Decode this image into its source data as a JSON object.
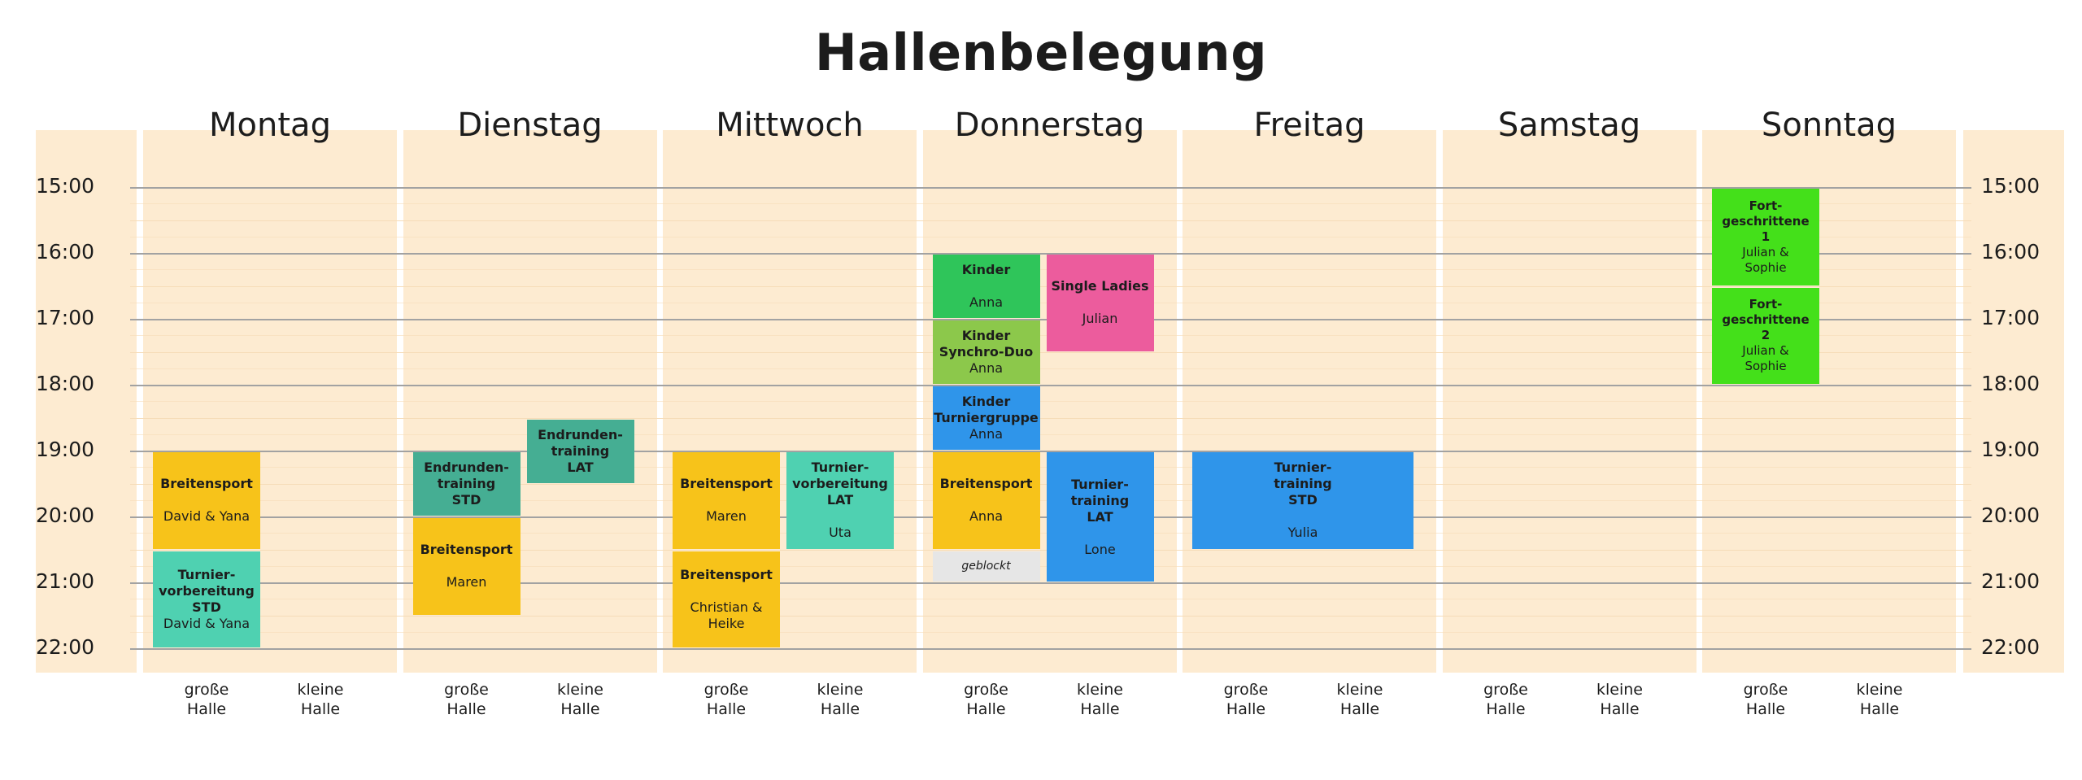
{
  "title": "Hallenbelegung",
  "days": [
    "Montag",
    "Dienstag",
    "Mittwoch",
    "Donnerstag",
    "Freitag",
    "Samstag",
    "Sonntag"
  ],
  "times": [
    "15:00",
    "16:00",
    "17:00",
    "18:00",
    "19:00",
    "20:00",
    "21:00",
    "22:00"
  ],
  "halls": {
    "gross": "große\nHalle",
    "klein": "kleine\nHalle"
  },
  "colors": {
    "background": "#fdebd1",
    "title": "#1c1c1c",
    "grid": "#a2a2a2"
  },
  "events": [
    {
      "day": 0,
      "hall": "gross",
      "start": 19.0,
      "end": 20.5,
      "color": "#f7c31a",
      "title": "Breitensport",
      "sub": "David & Yana",
      "gap": true
    },
    {
      "day": 0,
      "hall": "gross",
      "start": 20.5,
      "end": 22.0,
      "color": "#4fd1b1",
      "title": "Turnier-\nvorbereitung\nSTD",
      "sub": "David & Yana",
      "gap": false
    },
    {
      "day": 1,
      "hall": "gross",
      "start": 19.0,
      "end": 20.0,
      "color": "#45ae93",
      "title": "Endrunden-\ntraining\nSTD",
      "sub": "",
      "gap": false
    },
    {
      "day": 1,
      "hall": "gross",
      "start": 20.0,
      "end": 21.5,
      "color": "#f7c31a",
      "title": "Breitensport",
      "sub": "Maren",
      "gap": true
    },
    {
      "day": 1,
      "hall": "klein",
      "start": 18.5,
      "end": 19.5,
      "color": "#45ae93",
      "title": "Endrunden-\ntraining\nLAT",
      "sub": "",
      "gap": false
    },
    {
      "day": 2,
      "hall": "gross",
      "start": 19.0,
      "end": 20.5,
      "color": "#f7c31a",
      "title": "Breitensport",
      "sub": "Maren",
      "gap": true
    },
    {
      "day": 2,
      "hall": "gross",
      "start": 20.5,
      "end": 22.0,
      "color": "#f7c31a",
      "title": "Breitensport",
      "sub": "Christian &\nHeike",
      "gap": true
    },
    {
      "day": 2,
      "hall": "klein",
      "start": 19.0,
      "end": 20.5,
      "color": "#4fd1b1",
      "title": "Turnier-\nvorbereitung\nLAT",
      "sub": "Uta",
      "gap": true
    },
    {
      "day": 3,
      "hall": "gross",
      "start": 16.0,
      "end": 17.0,
      "color": "#2fc55a",
      "title": "Kinder",
      "sub": "Anna",
      "gap": true
    },
    {
      "day": 3,
      "hall": "gross",
      "start": 17.0,
      "end": 18.0,
      "color": "#8cc84b",
      "title": "Kinder\nSynchro-Duo",
      "sub": "Anna",
      "gap": false
    },
    {
      "day": 3,
      "hall": "gross",
      "start": 18.0,
      "end": 19.0,
      "color": "#2f95ea",
      "title": "Kinder\nTurniergruppe",
      "sub": "Anna",
      "gap": false
    },
    {
      "day": 3,
      "hall": "gross",
      "start": 19.0,
      "end": 20.5,
      "color": "#f7c31a",
      "title": "Breitensport",
      "sub": "Anna",
      "gap": true
    },
    {
      "day": 3,
      "hall": "klein",
      "start": 16.0,
      "end": 17.5,
      "color": "#ec5c9d",
      "title": "Single Ladies",
      "sub": "Julian",
      "gap": true
    },
    {
      "day": 3,
      "hall": "klein",
      "start": 19.0,
      "end": 21.0,
      "color": "#2f95ea",
      "title": "Turnier-\ntraining\nLAT",
      "sub": "Lone",
      "gap": true
    },
    {
      "day": 4,
      "hall": "both",
      "start": 19.0,
      "end": 20.5,
      "color": "#2f95ea",
      "title": "Turnier-\ntraining\nSTD",
      "sub": "Yulia",
      "gap": true
    },
    {
      "day": 6,
      "hall": "gross",
      "start": 15.0,
      "end": 16.5,
      "color": "#44e01a",
      "title": "Fort-\ngeschrittene\n1",
      "sub": "Julian &\nSophie",
      "gap": false,
      "small": true
    },
    {
      "day": 6,
      "hall": "gross",
      "start": 16.5,
      "end": 18.0,
      "color": "#44e01a",
      "title": "Fort-\ngeschrittene\n2",
      "sub": "Julian &\nSophie",
      "gap": false,
      "small": true
    }
  ],
  "blocked": [
    {
      "day": 3,
      "hall": "gross",
      "start": 20.5,
      "end": 21.0,
      "label": "geblockt"
    }
  ]
}
